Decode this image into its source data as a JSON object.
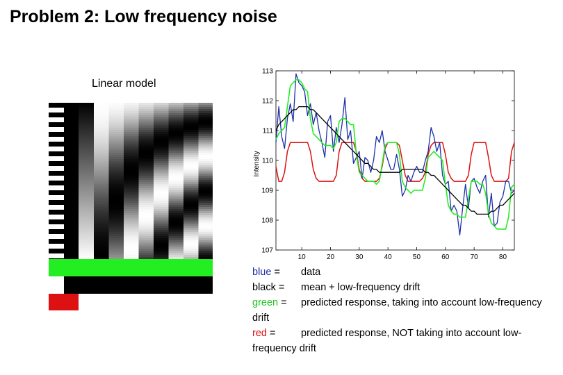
{
  "slide": {
    "title": "Problem 2: Low frequency noise",
    "model_label": "Linear model"
  },
  "colors": {
    "blue": "#1a2fa8",
    "black": "#000000",
    "green": "#22ee22",
    "red": "#dd1111"
  },
  "legend": [
    {
      "color_word": "blue",
      "sep": " =",
      "desc": "data"
    },
    {
      "color_word": "black",
      "sep": " =",
      "desc": "mean + low-frequency drift"
    },
    {
      "color_word": "green",
      "sep": " =",
      "desc": "predicted response, taking into account low-frequency drift"
    },
    {
      "color_word": "red",
      "sep": " =",
      "desc": "predicted response, NOT taking into account low-frequency drift"
    }
  ],
  "chart_data": {
    "type": "line",
    "title": "",
    "xlabel": "",
    "ylabel": "Intensity",
    "xlim": [
      1,
      84
    ],
    "ylim": [
      107,
      113
    ],
    "x_ticks": [
      10,
      20,
      30,
      40,
      50,
      60,
      70,
      80
    ],
    "y_ticks": [
      107,
      108,
      109,
      110,
      111,
      112,
      113
    ],
    "series": [
      {
        "name": "data",
        "color": "blue",
        "values": [
          110.6,
          111.8,
          110.8,
          110.4,
          111.4,
          111.9,
          111.3,
          112.9,
          112.6,
          112.5,
          112.3,
          111.5,
          111.9,
          111.2,
          111.6,
          111.0,
          110.6,
          110.1,
          111.3,
          111.5,
          110.3,
          111.1,
          110.6,
          111.2,
          112.1,
          110.7,
          111.0,
          109.9,
          110.1,
          110.3,
          109.4,
          110.1,
          110.0,
          109.6,
          110.0,
          110.8,
          110.6,
          111.0,
          110.3,
          110.0,
          109.7,
          109.7,
          110.2,
          109.7,
          108.8,
          109.0,
          109.5,
          109.3,
          109.6,
          109.8,
          109.6,
          109.6,
          110.0,
          110.3,
          111.1,
          110.8,
          110.3,
          110.6,
          109.5,
          109.2,
          109.3,
          108.3,
          108.5,
          108.3,
          107.5,
          108.4,
          109.2,
          108.4,
          109.3,
          109.4,
          109.1,
          108.9,
          109.3,
          109.5,
          108.1,
          108.9,
          107.8,
          107.9,
          108.6,
          108.8,
          109.3,
          109.3,
          108.9,
          109.0
        ]
      },
      {
        "name": "mean + low-frequency drift",
        "color": "black",
        "values": [
          111.0,
          111.2,
          111.3,
          111.4,
          111.5,
          111.6,
          111.7,
          111.7,
          111.8,
          111.8,
          111.8,
          111.8,
          111.7,
          111.7,
          111.6,
          111.5,
          111.4,
          111.3,
          111.2,
          111.1,
          111.0,
          110.9,
          110.8,
          110.7,
          110.6,
          110.5,
          110.4,
          110.3,
          110.2,
          110.1,
          110.0,
          109.9,
          109.9,
          109.8,
          109.7,
          109.7,
          109.6,
          109.6,
          109.6,
          109.6,
          109.6,
          109.6,
          109.6,
          109.6,
          109.7,
          109.7,
          109.7,
          109.7,
          109.7,
          109.7,
          109.7,
          109.7,
          109.6,
          109.6,
          109.5,
          109.5,
          109.4,
          109.3,
          109.2,
          109.1,
          109.0,
          108.9,
          108.8,
          108.7,
          108.6,
          108.5,
          108.5,
          108.4,
          108.3,
          108.3,
          108.2,
          108.2,
          108.2,
          108.2,
          108.2,
          108.3,
          108.3,
          108.4,
          108.5,
          108.5,
          108.6,
          108.7,
          108.8,
          108.9
        ]
      },
      {
        "name": "predicted response, taking into account low-frequency drift",
        "color": "green",
        "values": [
          110.7,
          110.9,
          111.0,
          111.1,
          111.8,
          112.5,
          112.6,
          112.7,
          112.7,
          112.6,
          112.4,
          112.3,
          111.4,
          110.9,
          110.8,
          110.7,
          110.6,
          110.5,
          110.5,
          110.5,
          110.4,
          110.6,
          111.3,
          111.4,
          111.4,
          111.3,
          111.2,
          111.2,
          110.2,
          109.6,
          109.5,
          109.4,
          109.3,
          109.3,
          109.3,
          109.2,
          109.3,
          109.9,
          110.5,
          110.6,
          110.6,
          110.6,
          110.6,
          110.2,
          109.3,
          109.1,
          109.0,
          108.9,
          109.0,
          109.0,
          109.0,
          109.0,
          109.4,
          110.1,
          110.2,
          110.3,
          110.2,
          110.1,
          110.0,
          109.2,
          108.5,
          108.3,
          108.2,
          108.2,
          108.1,
          108.1,
          108.1,
          108.7,
          109.3,
          109.3,
          109.3,
          109.2,
          109.2,
          108.9,
          108.2,
          107.9,
          107.8,
          107.7,
          107.7,
          107.7,
          107.7,
          108.1,
          109.1,
          109.2
        ]
      },
      {
        "name": "predicted response, NOT taking into account low-frequency drift",
        "color": "red",
        "values": [
          109.8,
          109.3,
          109.3,
          109.6,
          110.3,
          110.6,
          110.6,
          110.6,
          110.6,
          110.6,
          110.6,
          110.6,
          110.3,
          109.7,
          109.4,
          109.3,
          109.3,
          109.3,
          109.3,
          109.3,
          109.3,
          109.5,
          110.3,
          110.6,
          110.6,
          110.6,
          110.6,
          110.6,
          110.3,
          109.7,
          109.4,
          109.3,
          109.3,
          109.3,
          109.3,
          109.3,
          109.4,
          109.8,
          110.4,
          110.6,
          110.6,
          110.6,
          110.6,
          110.5,
          110.0,
          109.5,
          109.3,
          109.3,
          109.3,
          109.3,
          109.3,
          109.4,
          109.6,
          110.2,
          110.5,
          110.6,
          110.6,
          110.6,
          110.6,
          110.2,
          109.6,
          109.4,
          109.3,
          109.3,
          109.3,
          109.3,
          109.3,
          109.5,
          110.2,
          110.6,
          110.6,
          110.6,
          110.6,
          110.6,
          110.1,
          109.5,
          109.3,
          109.3,
          109.3,
          109.3,
          109.3,
          109.4,
          110.3,
          110.6
        ]
      }
    ]
  }
}
